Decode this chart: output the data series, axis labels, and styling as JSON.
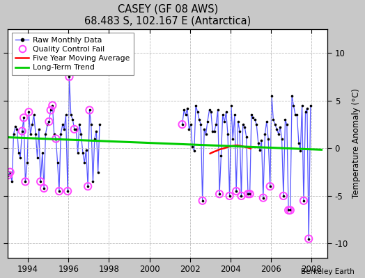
{
  "title": "CASEY (GF 08 AWS)",
  "subtitle": "68.483 S, 102.167 E (Antarctica)",
  "ylabel": "Temperature Anomaly (°C)",
  "credit": "Berkeley Earth",
  "xlim": [
    1993.0,
    2008.8
  ],
  "ylim": [
    -11.5,
    12.5
  ],
  "yticks": [
    -10,
    -5,
    0,
    5,
    10
  ],
  "xticks": [
    1994,
    1996,
    1998,
    2000,
    2002,
    2004,
    2006,
    2008
  ],
  "bg_color": "#c8c8c8",
  "plot_bg_color": "#ffffff",
  "raw_data_seg1": [
    [
      1993.04,
      -2.8
    ],
    [
      1993.12,
      -2.5
    ],
    [
      1993.21,
      -3.5
    ],
    [
      1993.29,
      1.5
    ],
    [
      1993.38,
      2.3
    ],
    [
      1993.46,
      2.0
    ],
    [
      1993.54,
      -0.5
    ],
    [
      1993.62,
      -1.0
    ],
    [
      1993.71,
      1.8
    ],
    [
      1993.79,
      3.2
    ],
    [
      1993.87,
      -3.5
    ],
    [
      1993.96,
      -1.5
    ],
    [
      1994.04,
      3.8
    ],
    [
      1994.12,
      1.5
    ],
    [
      1994.21,
      2.5
    ],
    [
      1994.29,
      3.5
    ],
    [
      1994.38,
      1.5
    ],
    [
      1994.46,
      -1.0
    ],
    [
      1994.54,
      2.0
    ],
    [
      1994.62,
      -3.5
    ],
    [
      1994.71,
      -0.5
    ],
    [
      1994.79,
      -4.2
    ],
    [
      1994.87,
      1.5
    ],
    [
      1994.96,
      2.5
    ],
    [
      1995.04,
      2.8
    ],
    [
      1995.12,
      4.0
    ],
    [
      1995.21,
      4.5
    ],
    [
      1995.29,
      1.5
    ],
    [
      1995.38,
      1.0
    ],
    [
      1995.46,
      -1.5
    ],
    [
      1995.54,
      -4.5
    ],
    [
      1995.62,
      1.5
    ],
    [
      1995.71,
      2.5
    ],
    [
      1995.79,
      2.0
    ],
    [
      1995.87,
      3.5
    ],
    [
      1995.96,
      -4.5
    ],
    [
      1996.04,
      7.5
    ],
    [
      1996.12,
      3.5
    ],
    [
      1996.21,
      3.0
    ],
    [
      1996.29,
      2.0
    ],
    [
      1996.38,
      2.0
    ],
    [
      1996.46,
      -0.5
    ],
    [
      1996.54,
      2.5
    ],
    [
      1996.62,
      1.5
    ],
    [
      1996.71,
      -0.5
    ],
    [
      1996.79,
      -1.5
    ],
    [
      1996.87,
      -0.2
    ],
    [
      1996.96,
      -4.0
    ],
    [
      1997.04,
      4.0
    ],
    [
      1997.12,
      2.5
    ],
    [
      1997.21,
      -3.5
    ],
    [
      1997.29,
      1.0
    ],
    [
      1997.38,
      1.8
    ],
    [
      1997.46,
      -2.5
    ],
    [
      1997.54,
      2.5
    ]
  ],
  "raw_data_seg2": [
    [
      2001.62,
      2.5
    ],
    [
      2001.71,
      4.0
    ],
    [
      2001.79,
      3.5
    ],
    [
      2001.87,
      4.2
    ],
    [
      2001.96,
      2.0
    ],
    [
      2002.04,
      2.5
    ],
    [
      2002.12,
      0.2
    ],
    [
      2002.21,
      -0.3
    ],
    [
      2002.29,
      4.5
    ],
    [
      2002.38,
      3.8
    ],
    [
      2002.46,
      3.0
    ],
    [
      2002.54,
      2.5
    ],
    [
      2002.62,
      -5.5
    ],
    [
      2002.71,
      2.0
    ],
    [
      2002.79,
      1.5
    ],
    [
      2002.87,
      2.8
    ],
    [
      2002.96,
      4.0
    ],
    [
      2003.04,
      3.8
    ],
    [
      2003.12,
      1.8
    ],
    [
      2003.21,
      1.8
    ],
    [
      2003.29,
      2.5
    ],
    [
      2003.38,
      4.0
    ],
    [
      2003.46,
      -4.8
    ],
    [
      2003.54,
      -0.8
    ],
    [
      2003.62,
      3.5
    ],
    [
      2003.71,
      2.8
    ],
    [
      2003.79,
      3.8
    ],
    [
      2003.87,
      1.5
    ],
    [
      2003.96,
      -5.0
    ],
    [
      2004.04,
      4.5
    ],
    [
      2004.12,
      1.0
    ],
    [
      2004.21,
      3.5
    ],
    [
      2004.29,
      -4.5
    ],
    [
      2004.38,
      2.8
    ],
    [
      2004.46,
      1.8
    ],
    [
      2004.54,
      -5.0
    ],
    [
      2004.62,
      2.5
    ],
    [
      2004.71,
      2.2
    ],
    [
      2004.79,
      1.2
    ],
    [
      2004.87,
      -4.8
    ],
    [
      2004.96,
      -4.8
    ],
    [
      2005.04,
      3.5
    ],
    [
      2005.12,
      3.2
    ],
    [
      2005.21,
      3.0
    ],
    [
      2005.29,
      2.5
    ],
    [
      2005.38,
      0.5
    ],
    [
      2005.46,
      -0.2
    ],
    [
      2005.54,
      0.8
    ],
    [
      2005.62,
      -5.2
    ],
    [
      2005.71,
      1.5
    ],
    [
      2005.79,
      2.8
    ],
    [
      2005.87,
      1.0
    ],
    [
      2005.96,
      -4.0
    ],
    [
      2006.04,
      5.5
    ],
    [
      2006.12,
      3.0
    ],
    [
      2006.21,
      2.5
    ],
    [
      2006.29,
      2.0
    ],
    [
      2006.38,
      1.5
    ],
    [
      2006.46,
      2.2
    ],
    [
      2006.54,
      1.0
    ],
    [
      2006.62,
      -5.0
    ],
    [
      2006.71,
      3.0
    ],
    [
      2006.79,
      2.5
    ],
    [
      2006.87,
      -6.5
    ],
    [
      2006.96,
      -6.5
    ],
    [
      2007.04,
      5.5
    ],
    [
      2007.12,
      4.5
    ],
    [
      2007.21,
      3.5
    ],
    [
      2007.29,
      3.5
    ],
    [
      2007.38,
      0.5
    ],
    [
      2007.46,
      -0.3
    ],
    [
      2007.54,
      4.5
    ],
    [
      2007.62,
      -5.5
    ],
    [
      2007.71,
      3.8
    ],
    [
      2007.79,
      4.2
    ],
    [
      2007.87,
      -9.5
    ],
    [
      2007.96,
      4.5
    ]
  ],
  "qc_fail": [
    [
      1993.04,
      -2.8
    ],
    [
      1993.12,
      -2.5
    ],
    [
      1993.71,
      1.8
    ],
    [
      1993.79,
      3.2
    ],
    [
      1993.87,
      -3.5
    ],
    [
      1994.04,
      3.8
    ],
    [
      1994.62,
      -3.5
    ],
    [
      1994.79,
      -4.2
    ],
    [
      1995.04,
      2.8
    ],
    [
      1995.12,
      4.0
    ],
    [
      1995.21,
      4.5
    ],
    [
      1995.38,
      1.0
    ],
    [
      1995.54,
      -4.5
    ],
    [
      1995.96,
      -4.5
    ],
    [
      1996.04,
      7.5
    ],
    [
      1996.29,
      2.0
    ],
    [
      1996.96,
      -4.0
    ],
    [
      1997.04,
      4.0
    ],
    [
      2001.62,
      2.5
    ],
    [
      2002.62,
      -5.5
    ],
    [
      2003.46,
      -4.8
    ],
    [
      2003.96,
      -5.0
    ],
    [
      2004.29,
      -4.5
    ],
    [
      2004.54,
      -5.0
    ],
    [
      2004.87,
      -4.8
    ],
    [
      2004.96,
      -4.8
    ],
    [
      2005.62,
      -5.2
    ],
    [
      2005.96,
      -4.0
    ],
    [
      2006.62,
      -5.0
    ],
    [
      2006.87,
      -6.5
    ],
    [
      2006.96,
      -6.5
    ],
    [
      2007.62,
      -5.5
    ],
    [
      2007.87,
      -9.5
    ]
  ],
  "moving_avg": [
    [
      2003.0,
      -0.55
    ],
    [
      2003.1,
      -0.45
    ],
    [
      2003.2,
      -0.35
    ],
    [
      2003.3,
      -0.28
    ],
    [
      2003.4,
      -0.18
    ],
    [
      2003.5,
      -0.1
    ],
    [
      2003.6,
      -0.05
    ],
    [
      2003.7,
      0.0
    ],
    [
      2003.8,
      0.08
    ],
    [
      2003.9,
      0.15
    ],
    [
      2004.0,
      0.2
    ],
    [
      2004.1,
      0.25
    ],
    [
      2004.2,
      0.28
    ],
    [
      2004.3,
      0.3
    ],
    [
      2004.4,
      0.28
    ],
    [
      2004.5,
      0.25
    ],
    [
      2004.6,
      0.2
    ],
    [
      2004.7,
      0.15
    ],
    [
      2004.8,
      0.1
    ],
    [
      2004.9,
      0.05
    ],
    [
      2005.0,
      -0.02
    ]
  ],
  "trend_x": [
    1993.0,
    2008.5
  ],
  "trend_y": [
    1.15,
    -0.15
  ],
  "raw_line_color": "#5555ff",
  "raw_marker_color": "#000000",
  "qc_color": "#ff44ff",
  "moving_avg_color": "#ff0000",
  "trend_color": "#00cc00",
  "grid_color": "#bbbbbb",
  "grid_style": "--"
}
